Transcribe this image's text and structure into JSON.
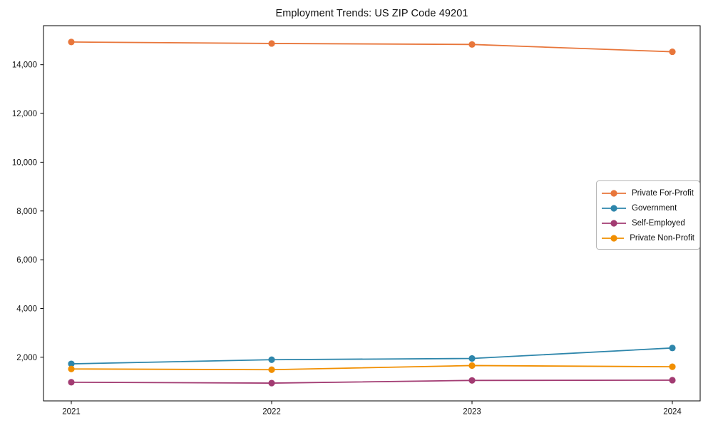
{
  "chart_data": {
    "type": "line",
    "title": "Employment Trends: US ZIP Code 49201",
    "xlabel": "",
    "ylabel": "",
    "categories": [
      "2021",
      "2022",
      "2023",
      "2024"
    ],
    "series": [
      {
        "name": "Private For-Profit",
        "color": "#e8763b",
        "values": [
          14930,
          14870,
          14830,
          14530
        ]
      },
      {
        "name": "Government",
        "color": "#2e86ab",
        "values": [
          1730,
          1900,
          1950,
          2380
        ]
      },
      {
        "name": "Self-Employed",
        "color": "#a23b72",
        "values": [
          975,
          940,
          1050,
          1060
        ]
      },
      {
        "name": "Private Non-Profit",
        "color": "#f18f01",
        "values": [
          1520,
          1490,
          1660,
          1610
        ]
      }
    ],
    "yticks": [
      2000,
      4000,
      6000,
      8000,
      10000,
      12000,
      14000
    ],
    "ylim": [
      210,
      15600
    ],
    "grid": false,
    "legend_position": "center-right",
    "marker": "circle",
    "frame_color": "#000000",
    "background": "#ffffff"
  }
}
